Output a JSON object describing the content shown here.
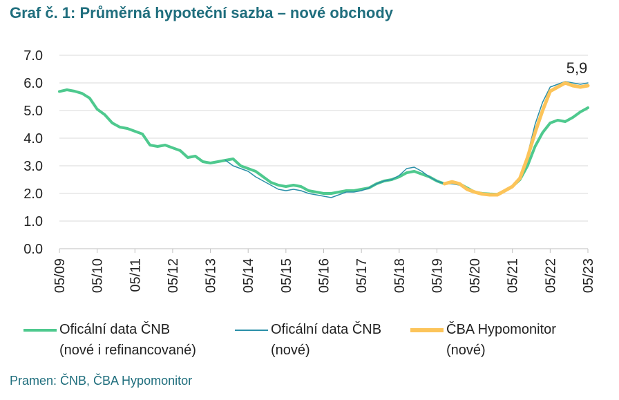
{
  "title": "Graf č. 1: Průměrná hypoteční sazba – nové obchody",
  "source": "Pramen: ČNB, ČBA Hypomonitor",
  "colors": {
    "cnb_all": "#4ec98e",
    "cnb_new": "#2a8fa8",
    "cba": "#fcc45a",
    "title": "#1f6e7d"
  },
  "chart_data": {
    "type": "line",
    "title": "",
    "xlabel": "",
    "ylabel": "",
    "ylim": [
      0,
      7
    ],
    "yticks": [
      "0.0",
      "1.0",
      "2.0",
      "3.0",
      "4.0",
      "5.0",
      "6.0",
      "7.0"
    ],
    "xticks": [
      "05/09",
      "05/10",
      "05/11",
      "05/12",
      "05/13",
      "05/14",
      "05/15",
      "05/16",
      "05/17",
      "05/18",
      "05/19",
      "05/20",
      "05/21",
      "05/22",
      "05/23"
    ],
    "grid": true,
    "legend_position": "bottom",
    "annotation": {
      "text": "5,9",
      "x": 2023.4,
      "y": 5.9
    },
    "series": [
      {
        "name": "Oficální data ČNB (nové i refinancované)",
        "color": "#4ec98e",
        "points": [
          [
            2009.4,
            5.69
          ],
          [
            2009.6,
            5.75
          ],
          [
            2009.8,
            5.7
          ],
          [
            2010.0,
            5.62
          ],
          [
            2010.2,
            5.45
          ],
          [
            2010.4,
            5.05
          ],
          [
            2010.6,
            4.85
          ],
          [
            2010.8,
            4.55
          ],
          [
            2011.0,
            4.4
          ],
          [
            2011.2,
            4.35
          ],
          [
            2011.4,
            4.25
          ],
          [
            2011.6,
            4.15
          ],
          [
            2011.8,
            3.75
          ],
          [
            2012.0,
            3.7
          ],
          [
            2012.2,
            3.75
          ],
          [
            2012.4,
            3.65
          ],
          [
            2012.6,
            3.55
          ],
          [
            2012.8,
            3.3
          ],
          [
            2013.0,
            3.35
          ],
          [
            2013.2,
            3.15
          ],
          [
            2013.4,
            3.1
          ],
          [
            2013.6,
            3.15
          ],
          [
            2013.8,
            3.2
          ],
          [
            2014.0,
            3.25
          ],
          [
            2014.2,
            3.0
          ],
          [
            2014.4,
            2.9
          ],
          [
            2014.6,
            2.8
          ],
          [
            2014.8,
            2.6
          ],
          [
            2015.0,
            2.4
          ],
          [
            2015.2,
            2.3
          ],
          [
            2015.4,
            2.25
          ],
          [
            2015.6,
            2.3
          ],
          [
            2015.8,
            2.25
          ],
          [
            2016.0,
            2.1
          ],
          [
            2016.2,
            2.05
          ],
          [
            2016.4,
            2.0
          ],
          [
            2016.6,
            2.0
          ],
          [
            2016.8,
            2.05
          ],
          [
            2017.0,
            2.1
          ],
          [
            2017.2,
            2.1
          ],
          [
            2017.4,
            2.15
          ],
          [
            2017.6,
            2.2
          ],
          [
            2017.8,
            2.35
          ],
          [
            2018.0,
            2.45
          ],
          [
            2018.2,
            2.5
          ],
          [
            2018.4,
            2.6
          ],
          [
            2018.6,
            2.75
          ],
          [
            2018.8,
            2.8
          ],
          [
            2019.0,
            2.7
          ],
          [
            2019.2,
            2.6
          ],
          [
            2019.4,
            2.45
          ],
          [
            2019.6,
            2.35
          ],
          [
            2019.8,
            2.4
          ],
          [
            2020.0,
            2.35
          ],
          [
            2020.2,
            2.2
          ],
          [
            2020.4,
            2.05
          ],
          [
            2020.6,
            2.0
          ],
          [
            2020.8,
            1.98
          ],
          [
            2021.0,
            1.97
          ],
          [
            2021.2,
            2.1
          ],
          [
            2021.4,
            2.25
          ],
          [
            2021.6,
            2.5
          ],
          [
            2021.8,
            3.0
          ],
          [
            2022.0,
            3.7
          ],
          [
            2022.2,
            4.2
          ],
          [
            2022.4,
            4.55
          ],
          [
            2022.6,
            4.65
          ],
          [
            2022.8,
            4.6
          ],
          [
            2023.0,
            4.75
          ],
          [
            2023.2,
            4.95
          ],
          [
            2023.4,
            5.1
          ]
        ]
      },
      {
        "name": "Oficální data ČNB (nové)",
        "color": "#2a8fa8",
        "points": [
          [
            2013.8,
            3.2
          ],
          [
            2014.0,
            3.0
          ],
          [
            2014.2,
            2.9
          ],
          [
            2014.4,
            2.8
          ],
          [
            2014.6,
            2.6
          ],
          [
            2014.8,
            2.45
          ],
          [
            2015.0,
            2.3
          ],
          [
            2015.2,
            2.15
          ],
          [
            2015.4,
            2.1
          ],
          [
            2015.6,
            2.15
          ],
          [
            2015.8,
            2.1
          ],
          [
            2016.0,
            2.0
          ],
          [
            2016.2,
            1.95
          ],
          [
            2016.4,
            1.9
          ],
          [
            2016.6,
            1.85
          ],
          [
            2016.8,
            1.95
          ],
          [
            2017.0,
            2.05
          ],
          [
            2017.2,
            2.05
          ],
          [
            2017.4,
            2.1
          ],
          [
            2017.6,
            2.2
          ],
          [
            2017.8,
            2.35
          ],
          [
            2018.0,
            2.45
          ],
          [
            2018.2,
            2.5
          ],
          [
            2018.4,
            2.65
          ],
          [
            2018.6,
            2.9
          ],
          [
            2018.8,
            2.95
          ],
          [
            2019.0,
            2.8
          ],
          [
            2019.2,
            2.6
          ],
          [
            2019.4,
            2.45
          ],
          [
            2019.6,
            2.35
          ],
          [
            2019.8,
            2.35
          ],
          [
            2020.0,
            2.3
          ],
          [
            2020.2,
            2.15
          ],
          [
            2020.4,
            2.05
          ],
          [
            2020.6,
            1.98
          ],
          [
            2020.8,
            1.95
          ],
          [
            2021.0,
            1.95
          ],
          [
            2021.2,
            2.1
          ],
          [
            2021.4,
            2.3
          ],
          [
            2021.6,
            2.6
          ],
          [
            2021.8,
            3.4
          ],
          [
            2022.0,
            4.5
          ],
          [
            2022.2,
            5.3
          ],
          [
            2022.4,
            5.85
          ],
          [
            2022.6,
            5.95
          ],
          [
            2022.8,
            6.05
          ],
          [
            2023.0,
            6.0
          ],
          [
            2023.2,
            5.95
          ],
          [
            2023.4,
            6.0
          ]
        ]
      },
      {
        "name": "ČBA Hypomonitor (nové)",
        "color": "#fcc45a",
        "points": [
          [
            2019.6,
            2.35
          ],
          [
            2019.8,
            2.42
          ],
          [
            2020.0,
            2.35
          ],
          [
            2020.2,
            2.15
          ],
          [
            2020.4,
            2.05
          ],
          [
            2020.6,
            1.98
          ],
          [
            2020.8,
            1.95
          ],
          [
            2021.0,
            1.95
          ],
          [
            2021.2,
            2.1
          ],
          [
            2021.4,
            2.25
          ],
          [
            2021.6,
            2.55
          ],
          [
            2021.8,
            3.3
          ],
          [
            2022.0,
            4.2
          ],
          [
            2022.2,
            5.0
          ],
          [
            2022.4,
            5.7
          ],
          [
            2022.6,
            5.85
          ],
          [
            2022.8,
            6.0
          ],
          [
            2023.0,
            5.9
          ],
          [
            2023.2,
            5.85
          ],
          [
            2023.4,
            5.9
          ]
        ]
      }
    ]
  },
  "legend": [
    {
      "line1": "Oficální data ČNB",
      "line2": "(nové i refinancované)"
    },
    {
      "line1": "Oficální data ČNB",
      "line2": "(nové)"
    },
    {
      "line1": "ČBA Hypomonitor",
      "line2": "(nové)"
    }
  ]
}
